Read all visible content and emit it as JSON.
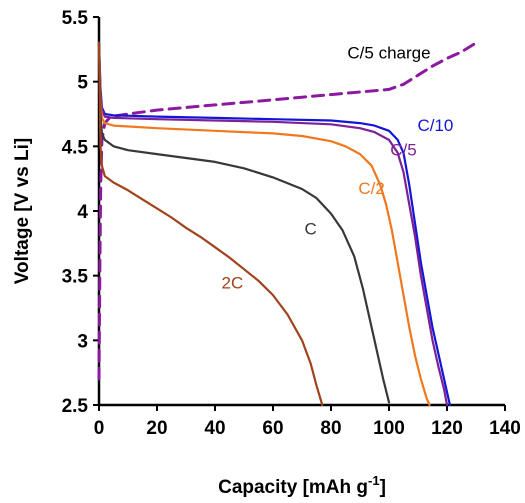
{
  "chart_data": {
    "type": "line",
    "title": "",
    "xlabel": "Capacity [mAh g",
    "xlabel_sup": "-1",
    "xlabel_end": "]",
    "ylabel": "Voltage [V vs Li]",
    "xlim": [
      0,
      140
    ],
    "ylim": [
      2.5,
      5.5
    ],
    "x_ticks": [
      "0",
      "20",
      "40",
      "60",
      "80",
      "100",
      "120",
      "140"
    ],
    "y_ticks": [
      "2.5",
      "3",
      "3.5",
      "4",
      "4.5",
      "5",
      "5.5"
    ],
    "grid": false,
    "legend": "none (labels placed next to curves)",
    "series": [
      {
        "name": "C/5 charge",
        "color": "#8B1A9E",
        "dash": true,
        "label_at": [
          100,
          5.18
        ],
        "points": [
          [
            0,
            2.7
          ],
          [
            0.3,
            3.6
          ],
          [
            0.6,
            4.2
          ],
          [
            1,
            4.55
          ],
          [
            2,
            4.68
          ],
          [
            4,
            4.73
          ],
          [
            10,
            4.75
          ],
          [
            20,
            4.78
          ],
          [
            30,
            4.8
          ],
          [
            40,
            4.82
          ],
          [
            50,
            4.84
          ],
          [
            60,
            4.86
          ],
          [
            70,
            4.88
          ],
          [
            80,
            4.9
          ],
          [
            90,
            4.92
          ],
          [
            100,
            4.94
          ],
          [
            105,
            4.98
          ],
          [
            110,
            5.05
          ],
          [
            115,
            5.12
          ],
          [
            120,
            5.18
          ],
          [
            125,
            5.23
          ],
          [
            130,
            5.3
          ]
        ]
      },
      {
        "name": "C/10",
        "color": "#1515D8",
        "dash": false,
        "label_at": [
          116,
          4.62
        ],
        "points": [
          [
            0,
            5.3
          ],
          [
            0.5,
            4.95
          ],
          [
            1,
            4.8
          ],
          [
            2,
            4.75
          ],
          [
            5,
            4.74
          ],
          [
            20,
            4.73
          ],
          [
            40,
            4.72
          ],
          [
            60,
            4.71
          ],
          [
            80,
            4.7
          ],
          [
            90,
            4.68
          ],
          [
            95,
            4.66
          ],
          [
            100,
            4.62
          ],
          [
            103,
            4.55
          ],
          [
            105,
            4.45
          ],
          [
            107,
            4.2
          ],
          [
            109,
            3.9
          ],
          [
            111,
            3.6
          ],
          [
            113,
            3.35
          ],
          [
            115,
            3.1
          ],
          [
            117,
            2.9
          ],
          [
            119,
            2.7
          ],
          [
            121,
            2.5
          ]
        ]
      },
      {
        "name": "C/5",
        "color": "#7B2296",
        "dash": false,
        "label_at": [
          105,
          4.43
        ],
        "points": [
          [
            0,
            5.3
          ],
          [
            0.5,
            4.9
          ],
          [
            1,
            4.78
          ],
          [
            2,
            4.73
          ],
          [
            5,
            4.72
          ],
          [
            20,
            4.71
          ],
          [
            40,
            4.7
          ],
          [
            60,
            4.69
          ],
          [
            80,
            4.67
          ],
          [
            90,
            4.64
          ],
          [
            95,
            4.61
          ],
          [
            100,
            4.55
          ],
          [
            103,
            4.45
          ],
          [
            105,
            4.3
          ],
          [
            107,
            4.05
          ],
          [
            109,
            3.8
          ],
          [
            111,
            3.5
          ],
          [
            113,
            3.25
          ],
          [
            115,
            3.0
          ],
          [
            117,
            2.8
          ],
          [
            119,
            2.62
          ],
          [
            120,
            2.5
          ]
        ]
      },
      {
        "name": "C/2",
        "color": "#F0781E",
        "dash": false,
        "label_at": [
          94,
          4.13
        ],
        "points": [
          [
            0,
            5.3
          ],
          [
            0.5,
            4.85
          ],
          [
            1,
            4.72
          ],
          [
            2,
            4.68
          ],
          [
            5,
            4.66
          ],
          [
            20,
            4.64
          ],
          [
            40,
            4.62
          ],
          [
            60,
            4.6
          ],
          [
            70,
            4.58
          ],
          [
            80,
            4.54
          ],
          [
            85,
            4.5
          ],
          [
            90,
            4.44
          ],
          [
            94,
            4.35
          ],
          [
            97,
            4.2
          ],
          [
            99,
            4.05
          ],
          [
            101,
            3.85
          ],
          [
            103,
            3.6
          ],
          [
            105,
            3.35
          ],
          [
            107,
            3.1
          ],
          [
            109,
            2.88
          ],
          [
            111,
            2.7
          ],
          [
            113,
            2.55
          ],
          [
            114,
            2.5
          ]
        ]
      },
      {
        "name": "C",
        "color": "#383838",
        "dash": false,
        "label_at": [
          73,
          3.82
        ],
        "points": [
          [
            0,
            5.3
          ],
          [
            0.5,
            4.75
          ],
          [
            1,
            4.6
          ],
          [
            2,
            4.55
          ],
          [
            5,
            4.5
          ],
          [
            10,
            4.47
          ],
          [
            20,
            4.44
          ],
          [
            30,
            4.41
          ],
          [
            40,
            4.38
          ],
          [
            50,
            4.33
          ],
          [
            60,
            4.26
          ],
          [
            70,
            4.17
          ],
          [
            75,
            4.1
          ],
          [
            80,
            3.98
          ],
          [
            84,
            3.85
          ],
          [
            88,
            3.65
          ],
          [
            91,
            3.4
          ],
          [
            94,
            3.1
          ],
          [
            96,
            2.9
          ],
          [
            98,
            2.7
          ],
          [
            100,
            2.52
          ]
        ]
      },
      {
        "name": "2C",
        "color": "#A0421C",
        "dash": false,
        "label_at": [
          46,
          3.4
        ],
        "points": [
          [
            0,
            5.3
          ],
          [
            0.5,
            4.5
          ],
          [
            1,
            4.35
          ],
          [
            2,
            4.27
          ],
          [
            5,
            4.22
          ],
          [
            10,
            4.16
          ],
          [
            15,
            4.09
          ],
          [
            20,
            4.02
          ],
          [
            25,
            3.95
          ],
          [
            30,
            3.87
          ],
          [
            35,
            3.8
          ],
          [
            40,
            3.72
          ],
          [
            45,
            3.64
          ],
          [
            50,
            3.55
          ],
          [
            55,
            3.46
          ],
          [
            60,
            3.35
          ],
          [
            65,
            3.2
          ],
          [
            70,
            3.0
          ],
          [
            73,
            2.82
          ],
          [
            75,
            2.65
          ],
          [
            77,
            2.5
          ]
        ]
      }
    ]
  }
}
